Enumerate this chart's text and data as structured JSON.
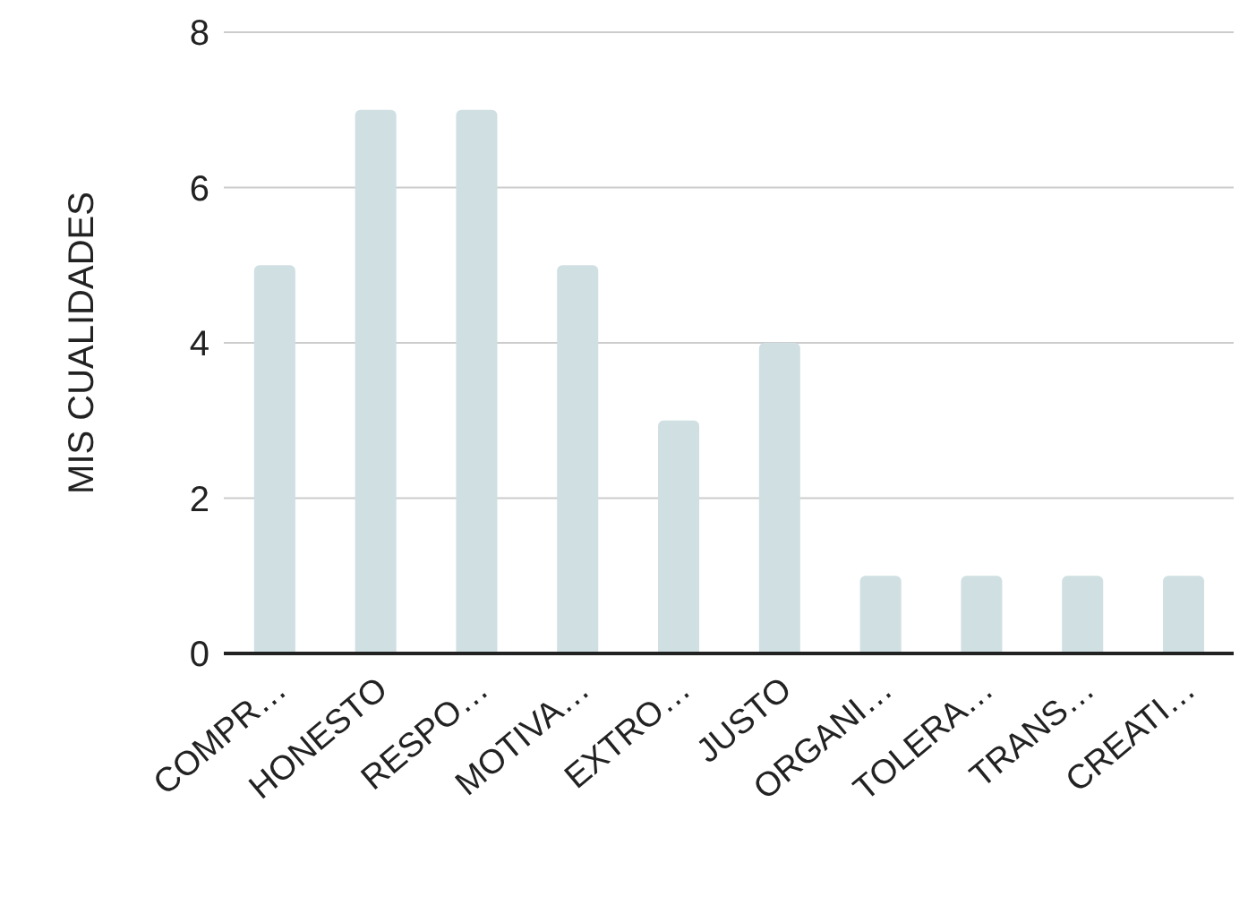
{
  "chart_data": {
    "type": "bar",
    "ylabel": "MIS CUALIDADES",
    "categories": [
      "COMPR…",
      "HONESTO",
      "RESPO…",
      "MOTIVA…",
      "EXTRO…",
      "JUSTO",
      "ORGANI…",
      "TOLERA…",
      "TRANS…",
      "CREATI…"
    ],
    "values": [
      5,
      7,
      7,
      5,
      3,
      4,
      1,
      1,
      1,
      1
    ],
    "color": "#cfdfe2",
    "ylim": [
      0,
      8
    ],
    "yticks": [
      0,
      2,
      4,
      6,
      8
    ],
    "grid": "y"
  }
}
